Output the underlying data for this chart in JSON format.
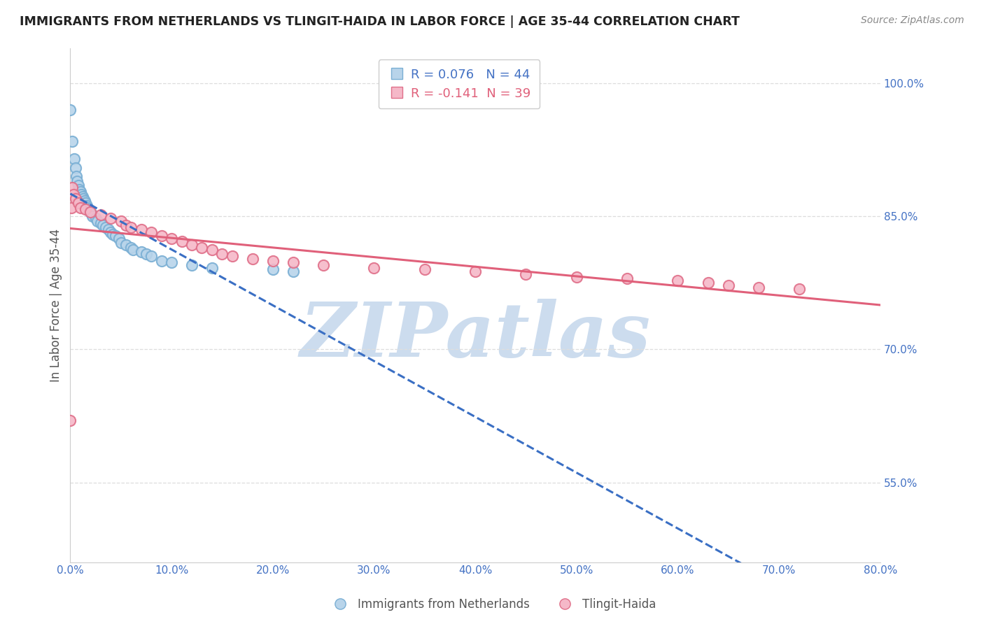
{
  "title": "IMMIGRANTS FROM NETHERLANDS VS TLINGIT-HAIDA IN LABOR FORCE | AGE 35-44 CORRELATION CHART",
  "source": "Source: ZipAtlas.com",
  "ylabel": "In Labor Force | Age 35-44",
  "series": [
    {
      "name": "Immigrants from Netherlands",
      "R": 0.076,
      "N": 44,
      "color": "#b8d4ea",
      "edge_color": "#7aafd4",
      "trend_color": "#3a6fc4",
      "trend_style": "--",
      "x": [
        0.0,
        0.2,
        0.4,
        0.5,
        0.6,
        0.7,
        0.8,
        0.9,
        1.0,
        1.1,
        1.2,
        1.3,
        1.4,
        1.5,
        1.6,
        1.7,
        1.8,
        1.9,
        2.0,
        2.1,
        2.2,
        2.5,
        2.7,
        3.0,
        3.2,
        3.5,
        3.8,
        4.0,
        4.2,
        4.5,
        4.8,
        5.0,
        5.5,
        6.0,
        6.2,
        7.0,
        7.5,
        8.0,
        9.0,
        10.0,
        12.0,
        14.0,
        20.0,
        22.0
      ],
      "y": [
        0.97,
        0.935,
        0.915,
        0.905,
        0.895,
        0.89,
        0.885,
        0.88,
        0.878,
        0.875,
        0.872,
        0.87,
        0.868,
        0.865,
        0.862,
        0.86,
        0.858,
        0.856,
        0.855,
        0.853,
        0.85,
        0.848,
        0.845,
        0.842,
        0.84,
        0.838,
        0.835,
        0.832,
        0.83,
        0.828,
        0.825,
        0.82,
        0.818,
        0.815,
        0.812,
        0.81,
        0.808,
        0.805,
        0.8,
        0.798,
        0.795,
        0.792,
        0.79,
        0.788
      ]
    },
    {
      "name": "Tlingit-Haida",
      "R": -0.141,
      "N": 39,
      "color": "#f5b8c8",
      "edge_color": "#e0708a",
      "trend_color": "#e0607a",
      "trend_style": "-",
      "x": [
        0.0,
        0.1,
        0.2,
        0.3,
        0.5,
        0.8,
        1.0,
        1.5,
        2.0,
        3.0,
        4.0,
        5.0,
        5.5,
        6.0,
        7.0,
        8.0,
        9.0,
        10.0,
        11.0,
        12.0,
        13.0,
        14.0,
        15.0,
        16.0,
        18.0,
        20.0,
        22.0,
        25.0,
        30.0,
        35.0,
        40.0,
        45.0,
        50.0,
        55.0,
        60.0,
        63.0,
        65.0,
        68.0,
        72.0
      ],
      "y": [
        0.62,
        0.86,
        0.883,
        0.875,
        0.87,
        0.865,
        0.86,
        0.858,
        0.855,
        0.852,
        0.848,
        0.845,
        0.84,
        0.838,
        0.835,
        0.832,
        0.828,
        0.825,
        0.822,
        0.818,
        0.815,
        0.812,
        0.808,
        0.805,
        0.802,
        0.8,
        0.798,
        0.795,
        0.792,
        0.79,
        0.788,
        0.785,
        0.782,
        0.78,
        0.778,
        0.775,
        0.772,
        0.77,
        0.768
      ]
    }
  ],
  "xlim": [
    0.0,
    80.0
  ],
  "ylim": [
    0.46,
    1.04
  ],
  "yticks_right": [
    1.0,
    0.85,
    0.7,
    0.55
  ],
  "ytick_labels_right": [
    "100.0%",
    "85.0%",
    "70.0%",
    "55.0%"
  ],
  "xticks": [
    0.0,
    10.0,
    20.0,
    30.0,
    40.0,
    50.0,
    60.0,
    70.0,
    80.0
  ],
  "xtick_labels": [
    "0.0%",
    "10.0%",
    "20.0%",
    "30.0%",
    "40.0%",
    "50.0%",
    "60.0%",
    "70.0%",
    "80.0%"
  ],
  "grid_color": "#dddddd",
  "watermark_text": "ZIPatlas",
  "watermark_color": "#ccdcee",
  "background_color": "#ffffff",
  "title_color": "#222222",
  "source_color": "#888888",
  "axis_label_color": "#555555",
  "tick_label_color": "#4472c4",
  "marker_size": 120,
  "marker_linewidth": 1.5
}
